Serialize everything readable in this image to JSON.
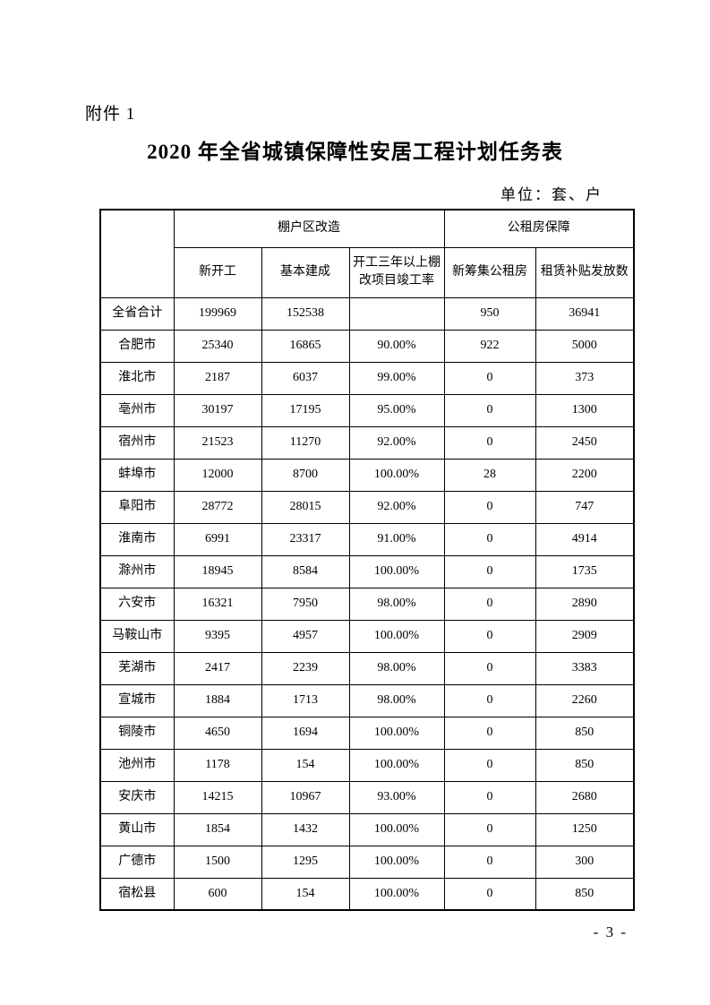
{
  "page": {
    "attachment_label": "附件 1",
    "title": "2020 年全省城镇保障性安居工程计划任务表",
    "unit_note": "单位：套、户",
    "page_number": "- 3 -"
  },
  "table": {
    "header": {
      "group_shantytown": "棚户区改造",
      "group_public_rental": "公租房保障",
      "col_new_start": "新开工",
      "col_basically_completed": "基本建成",
      "col_completion_rate": "开工三年以上棚改项目竣工率",
      "col_new_public_rental": "新筹集公租房",
      "col_rental_subsidy": "租赁补贴发放数"
    },
    "rows": [
      {
        "name": "全省合计",
        "new_start": "199969",
        "completed": "152538",
        "rate": "",
        "new_rental": "950",
        "subsidy": "36941"
      },
      {
        "name": "合肥市",
        "new_start": "25340",
        "completed": "16865",
        "rate": "90.00%",
        "new_rental": "922",
        "subsidy": "5000"
      },
      {
        "name": "淮北市",
        "new_start": "2187",
        "completed": "6037",
        "rate": "99.00%",
        "new_rental": "0",
        "subsidy": "373"
      },
      {
        "name": "亳州市",
        "new_start": "30197",
        "completed": "17195",
        "rate": "95.00%",
        "new_rental": "0",
        "subsidy": "1300"
      },
      {
        "name": "宿州市",
        "new_start": "21523",
        "completed": "11270",
        "rate": "92.00%",
        "new_rental": "0",
        "subsidy": "2450"
      },
      {
        "name": "蚌埠市",
        "new_start": "12000",
        "completed": "8700",
        "rate": "100.00%",
        "new_rental": "28",
        "subsidy": "2200"
      },
      {
        "name": "阜阳市",
        "new_start": "28772",
        "completed": "28015",
        "rate": "92.00%",
        "new_rental": "0",
        "subsidy": "747"
      },
      {
        "name": "淮南市",
        "new_start": "6991",
        "completed": "23317",
        "rate": "91.00%",
        "new_rental": "0",
        "subsidy": "4914"
      },
      {
        "name": "滁州市",
        "new_start": "18945",
        "completed": "8584",
        "rate": "100.00%",
        "new_rental": "0",
        "subsidy": "1735"
      },
      {
        "name": "六安市",
        "new_start": "16321",
        "completed": "7950",
        "rate": "98.00%",
        "new_rental": "0",
        "subsidy": "2890"
      },
      {
        "name": "马鞍山市",
        "new_start": "9395",
        "completed": "4957",
        "rate": "100.00%",
        "new_rental": "0",
        "subsidy": "2909"
      },
      {
        "name": "芜湖市",
        "new_start": "2417",
        "completed": "2239",
        "rate": "98.00%",
        "new_rental": "0",
        "subsidy": "3383"
      },
      {
        "name": "宣城市",
        "new_start": "1884",
        "completed": "1713",
        "rate": "98.00%",
        "new_rental": "0",
        "subsidy": "2260"
      },
      {
        "name": "铜陵市",
        "new_start": "4650",
        "completed": "1694",
        "rate": "100.00%",
        "new_rental": "0",
        "subsidy": "850"
      },
      {
        "name": "池州市",
        "new_start": "1178",
        "completed": "154",
        "rate": "100.00%",
        "new_rental": "0",
        "subsidy": "850"
      },
      {
        "name": "安庆市",
        "new_start": "14215",
        "completed": "10967",
        "rate": "93.00%",
        "new_rental": "0",
        "subsidy": "2680"
      },
      {
        "name": "黄山市",
        "new_start": "1854",
        "completed": "1432",
        "rate": "100.00%",
        "new_rental": "0",
        "subsidy": "1250"
      },
      {
        "name": "广德市",
        "new_start": "1500",
        "completed": "1295",
        "rate": "100.00%",
        "new_rental": "0",
        "subsidy": "300"
      },
      {
        "name": "宿松县",
        "new_start": "600",
        "completed": "154",
        "rate": "100.00%",
        "new_rental": "0",
        "subsidy": "850"
      }
    ]
  }
}
